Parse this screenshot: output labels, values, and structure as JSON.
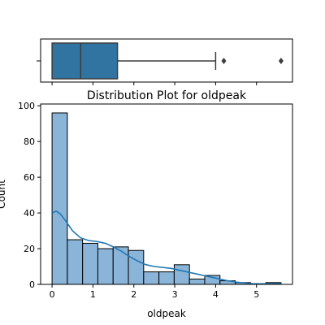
{
  "chart_data": [
    {
      "type": "box",
      "min": 0,
      "q1": 0,
      "median": 0.7,
      "q3": 1.6,
      "whisker_high": 4.0,
      "outliers": [
        4.2,
        5.6
      ],
      "xlim": [
        -0.28,
        5.88
      ],
      "box_color": "#3274a1",
      "y_tick_labels": [
        ""
      ]
    },
    {
      "type": "histogram",
      "title": "Distribution Plot for oldpeak",
      "xlabel": "oldpeak",
      "ylabel": "Count",
      "xlim": [
        -0.28,
        5.88
      ],
      "ylim": [
        0,
        101
      ],
      "xticks": [
        0,
        1,
        2,
        3,
        4,
        5
      ],
      "yticks": [
        0,
        20,
        40,
        60,
        80,
        100
      ],
      "bin_width": 0.3733,
      "bins": [
        {
          "x0": 0.0,
          "count": 96
        },
        {
          "x0": 0.3733,
          "count": 25
        },
        {
          "x0": 0.7467,
          "count": 23
        },
        {
          "x0": 1.12,
          "count": 20
        },
        {
          "x0": 1.4933,
          "count": 21
        },
        {
          "x0": 1.8667,
          "count": 19
        },
        {
          "x0": 2.24,
          "count": 7
        },
        {
          "x0": 2.6133,
          "count": 7
        },
        {
          "x0": 2.9867,
          "count": 11
        },
        {
          "x0": 3.36,
          "count": 3
        },
        {
          "x0": 3.7333,
          "count": 5
        },
        {
          "x0": 4.1067,
          "count": 2
        },
        {
          "x0": 4.48,
          "count": 1
        },
        {
          "x0": 4.8533,
          "count": 0
        },
        {
          "x0": 5.2267,
          "count": 1
        }
      ],
      "kde": [
        {
          "x": 0.0,
          "y": 40
        },
        {
          "x": 0.1,
          "y": 41
        },
        {
          "x": 0.2,
          "y": 39.5
        },
        {
          "x": 0.35,
          "y": 35
        },
        {
          "x": 0.5,
          "y": 30
        },
        {
          "x": 0.7,
          "y": 26
        },
        {
          "x": 0.9,
          "y": 24.5
        },
        {
          "x": 1.1,
          "y": 24
        },
        {
          "x": 1.3,
          "y": 23
        },
        {
          "x": 1.5,
          "y": 21
        },
        {
          "x": 1.7,
          "y": 18.5
        },
        {
          "x": 1.9,
          "y": 15.5
        },
        {
          "x": 2.1,
          "y": 13
        },
        {
          "x": 2.3,
          "y": 11
        },
        {
          "x": 2.5,
          "y": 10
        },
        {
          "x": 2.7,
          "y": 9.5
        },
        {
          "x": 2.9,
          "y": 9
        },
        {
          "x": 3.1,
          "y": 8
        },
        {
          "x": 3.3,
          "y": 7
        },
        {
          "x": 3.5,
          "y": 6
        },
        {
          "x": 3.7,
          "y": 5
        },
        {
          "x": 3.9,
          "y": 4
        },
        {
          "x": 4.1,
          "y": 3
        },
        {
          "x": 4.3,
          "y": 2
        },
        {
          "x": 4.5,
          "y": 1.3
        },
        {
          "x": 4.7,
          "y": 0.8
        },
        {
          "x": 4.9,
          "y": 0.4
        },
        {
          "x": 5.1,
          "y": 0.3
        },
        {
          "x": 5.3,
          "y": 0.3
        },
        {
          "x": 5.6,
          "y": 0.3
        }
      ],
      "bar_fill": "#8ab4d8",
      "bar_edge": "#000000",
      "kde_color": "#1f77b4",
      "grid": false
    }
  ]
}
